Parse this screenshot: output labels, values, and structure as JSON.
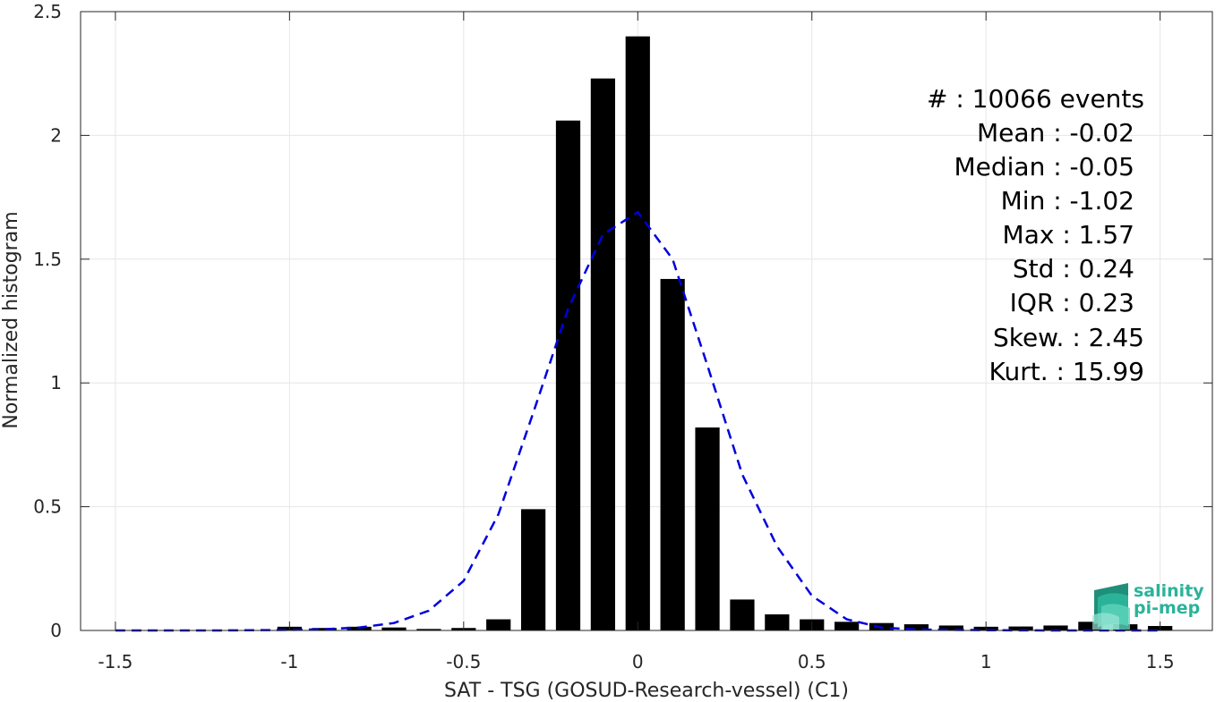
{
  "chart_data": {
    "type": "bar",
    "xlabel": "SAT - TSG (GOSUD-Research-vessel) (C1)",
    "ylabel": "Normalized histogram",
    "xlim": [
      -1.6,
      1.65
    ],
    "ylim": [
      0,
      2.5
    ],
    "grid": true,
    "xticks": [
      -1.5,
      -1,
      -0.5,
      0,
      0.5,
      1,
      1.5
    ],
    "xtick_labels": [
      "-1.5",
      "-1",
      "-0.5",
      "0",
      "0.5",
      "1",
      "1.5"
    ],
    "yticks": [
      0,
      0.5,
      1,
      1.5,
      2,
      2.5
    ],
    "ytick_labels": [
      "0",
      "0.5",
      "1",
      "1.5",
      "2",
      "2.5"
    ],
    "bar_width": 0.07,
    "bar_color": "#000000",
    "bins": [
      {
        "x": -1.0,
        "y": 0.015
      },
      {
        "x": -0.9,
        "y": 0.01
      },
      {
        "x": -0.8,
        "y": 0.015
      },
      {
        "x": -0.7,
        "y": 0.012
      },
      {
        "x": -0.6,
        "y": 0.006
      },
      {
        "x": -0.5,
        "y": 0.01
      },
      {
        "x": -0.4,
        "y": 0.045
      },
      {
        "x": -0.3,
        "y": 0.49
      },
      {
        "x": -0.2,
        "y": 2.06
      },
      {
        "x": -0.1,
        "y": 2.23
      },
      {
        "x": 0.0,
        "y": 2.4
      },
      {
        "x": 0.1,
        "y": 1.42
      },
      {
        "x": 0.2,
        "y": 0.82
      },
      {
        "x": 0.3,
        "y": 0.125
      },
      {
        "x": 0.4,
        "y": 0.065
      },
      {
        "x": 0.5,
        "y": 0.045
      },
      {
        "x": 0.6,
        "y": 0.035
      },
      {
        "x": 0.7,
        "y": 0.03
      },
      {
        "x": 0.8,
        "y": 0.025
      },
      {
        "x": 0.9,
        "y": 0.02
      },
      {
        "x": 1.0,
        "y": 0.015
      },
      {
        "x": 1.1,
        "y": 0.016
      },
      {
        "x": 1.2,
        "y": 0.02
      },
      {
        "x": 1.3,
        "y": 0.035
      },
      {
        "x": 1.4,
        "y": 0.025
      },
      {
        "x": 1.5,
        "y": 0.018
      }
    ],
    "fit_curve": {
      "color": "#0000dd",
      "style": "dashed",
      "x": [
        -1.5,
        -1.2,
        -1.0,
        -0.9,
        -0.8,
        -0.7,
        -0.6,
        -0.5,
        -0.4,
        -0.3,
        -0.2,
        -0.1,
        0.0,
        0.1,
        0.2,
        0.3,
        0.4,
        0.5,
        0.6,
        0.7,
        0.8,
        1.0,
        1.2,
        1.5
      ],
      "y": [
        0.0,
        0.0,
        0.002,
        0.005,
        0.012,
        0.03,
        0.08,
        0.2,
        0.47,
        0.88,
        1.3,
        1.6,
        1.69,
        1.5,
        1.07,
        0.63,
        0.34,
        0.14,
        0.045,
        0.012,
        0.004,
        0.001,
        0.0,
        0.0
      ]
    }
  },
  "stats": [
    "#  : 10066 events",
    "Mean : -0.02",
    "Median : -0.05",
    "Min : -1.02",
    "Max : 1.57",
    "Std : 0.24",
    "IQR : 0.23",
    "Skew. : 2.45",
    "Kurt. : 15.99"
  ],
  "logo": {
    "line1": "salinity",
    "line2": "pi-mep",
    "color": "#2bb39a"
  }
}
